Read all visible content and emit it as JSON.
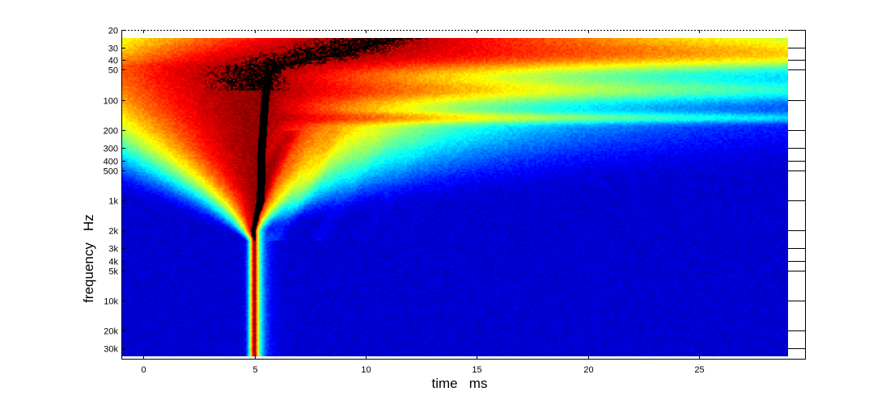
{
  "chart_data": {
    "type": "heatmap",
    "title": "",
    "xlabel": "time   ms",
    "ylabel": "frequency   Hz",
    "xlim": [
      -1,
      29.8
    ],
    "ylim_hz": [
      20,
      38000
    ],
    "y_scale": "log",
    "x_ticks": [
      {
        "value": 0,
        "label": "0"
      },
      {
        "value": 5,
        "label": "5"
      },
      {
        "value": 10,
        "label": "10"
      },
      {
        "value": 15,
        "label": "15"
      },
      {
        "value": 20,
        "label": "20"
      },
      {
        "value": 25,
        "label": "25"
      }
    ],
    "y_ticks": [
      {
        "value": 20,
        "label": "20"
      },
      {
        "value": 30,
        "label": "30"
      },
      {
        "value": 40,
        "label": "40"
      },
      {
        "value": 50,
        "label": "50"
      },
      {
        "value": 100,
        "label": "100"
      },
      {
        "value": 200,
        "label": "200"
      },
      {
        "value": 300,
        "label": "300"
      },
      {
        "value": 400,
        "label": "400"
      },
      {
        "value": 500,
        "label": "500"
      },
      {
        "value": 1000,
        "label": "1k"
      },
      {
        "value": 2000,
        "label": "2k"
      },
      {
        "value": 3000,
        "label": "3k"
      },
      {
        "value": 4000,
        "label": "4k"
      },
      {
        "value": 5000,
        "label": "5k"
      },
      {
        "value": 10000,
        "label": "10k"
      },
      {
        "value": 20000,
        "label": "20k"
      },
      {
        "value": 30000,
        "label": "30k"
      }
    ],
    "data_extent": {
      "time_ms": [
        -1,
        29
      ],
      "freq_hz": [
        24,
        36000
      ]
    },
    "colormap": "jet",
    "colors": {
      "low": "#00008f",
      "mid": "#00ffff",
      "high": "#ff0000",
      "peak": "#000000"
    },
    "peak_ridge": [
      {
        "freq_hz": 24,
        "time_ms": 11.5
      },
      {
        "freq_hz": 35,
        "time_ms": 8.5
      },
      {
        "freq_hz": 45,
        "time_ms": 6.2
      },
      {
        "freq_hz": 55,
        "time_ms": 5.6
      },
      {
        "freq_hz": 100,
        "time_ms": 5.45
      },
      {
        "freq_hz": 300,
        "time_ms": 5.3
      },
      {
        "freq_hz": 1000,
        "time_ms": 5.25
      },
      {
        "freq_hz": 2000,
        "time_ms": 5.0
      },
      {
        "freq_hz": 5000,
        "time_ms": 5.0
      },
      {
        "freq_hz": 36000,
        "time_ms": 5.0
      }
    ],
    "grid": false,
    "legend": "none"
  }
}
